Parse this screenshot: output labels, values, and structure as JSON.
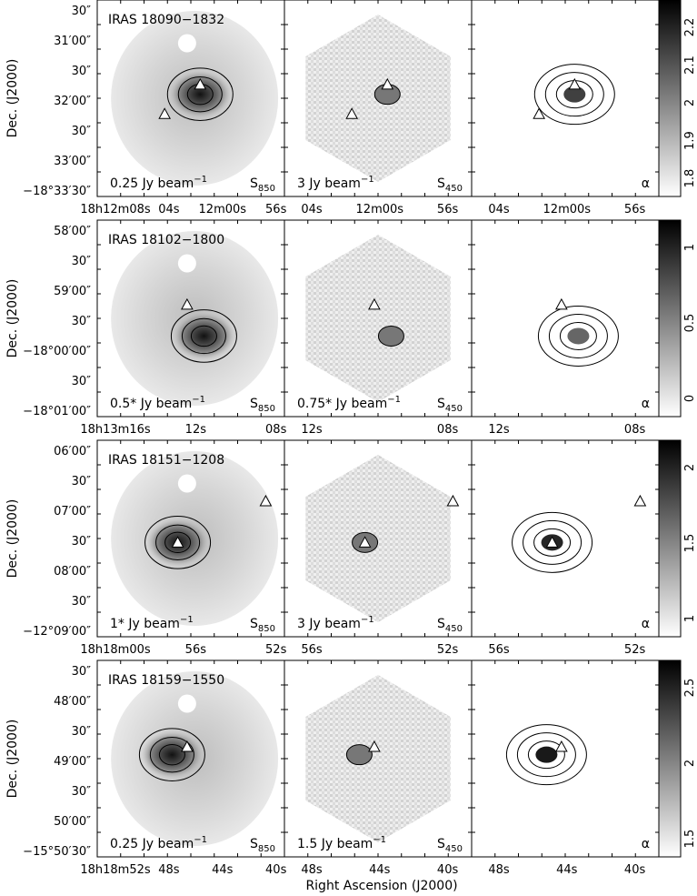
{
  "figure": {
    "xaxis_title": "Right Ascension (J2000)",
    "yaxis_title": "Dec. (J2000)"
  },
  "rows": [
    {
      "source": "IRAS 18090−1832",
      "labels": [
        "0.25 Jy beam",
        "3 Jy beam",
        ""
      ],
      "label_sup": [
        "−1",
        "−1",
        ""
      ],
      "maps": [
        "S850",
        "S450",
        "α"
      ],
      "yticks": [
        "30″",
        "31′00″",
        "30″",
        "32′00″",
        "30″",
        "33′00″",
        "−18°33′30″"
      ],
      "xticks_first": [
        "18h12m08s",
        "04s",
        "12m00s",
        "56s"
      ],
      "xticks_other": [
        "04s",
        "12m00s",
        "56s"
      ],
      "colorbar": [
        "2.2",
        "2.1",
        "2",
        "1.9",
        "1.8"
      ],
      "peak": [
        0.55,
        0.48
      ],
      "tri_white": [
        0.55,
        0.43
      ],
      "tri_open": [
        0.36,
        0.58
      ],
      "alpha_peak": 0.75
    },
    {
      "source": "IRAS 18102−1800",
      "labels": [
        "0.5* Jy beam",
        "0.75* Jy beam",
        ""
      ],
      "label_sup": [
        "−1",
        "−1",
        ""
      ],
      "maps": [
        "S850",
        "S450",
        "α"
      ],
      "yticks": [
        "58′00″",
        "30″",
        "59′00″",
        "30″",
        "−18°00′00″",
        "30″",
        "−18°01′00″"
      ],
      "xticks_first": [
        "18h13m16s",
        "12s",
        "08s"
      ],
      "xticks_other": [
        "12s",
        "08s"
      ],
      "colorbar": [
        "1",
        "0.5",
        "0"
      ],
      "peak": [
        0.57,
        0.59
      ],
      "tri_white": [],
      "tri_open": [
        0.48,
        0.43
      ],
      "alpha_peak": 0.6
    },
    {
      "source": "IRAS 18151−1208",
      "labels": [
        "1* Jy beam",
        "3 Jy beam",
        ""
      ],
      "label_sup": [
        "−1",
        "−1",
        ""
      ],
      "maps": [
        "S850",
        "S450",
        "α"
      ],
      "yticks": [
        "06′00″",
        "30″",
        "07′00″",
        "30″",
        "08′00″",
        "30″",
        "−12°09′00″"
      ],
      "xticks_first": [
        "18h18m00s",
        "56s",
        "52s"
      ],
      "xticks_other": [
        "56s",
        "52s"
      ],
      "colorbar": [
        "2",
        "1.5",
        "1"
      ],
      "peak": [
        0.43,
        0.52
      ],
      "tri_white": [
        0.43,
        0.52
      ],
      "tri_open": [
        0.9,
        0.31
      ],
      "alpha_peak": 0.85
    },
    {
      "source": "IRAS 18159−1550",
      "labels": [
        "0.25 Jy beam",
        "1.5 Jy beam",
        ""
      ],
      "label_sup": [
        "−1",
        "−1",
        ""
      ],
      "maps": [
        "S850",
        "S450",
        "α"
      ],
      "yticks": [
        "30″",
        "48′00″",
        "30″",
        "49′00″",
        "30″",
        "50′00″",
        "−15°50′30″"
      ],
      "xticks_first": [
        "18h18m52s",
        "48s",
        "44s",
        "40s"
      ],
      "xticks_other": [
        "48s",
        "44s",
        "40s"
      ],
      "colorbar": [
        "2.5",
        "2",
        "1.5"
      ],
      "peak": [
        0.4,
        0.48
      ],
      "tri_white": [
        0.48,
        0.44
      ],
      "tri_open": [],
      "alpha_peak": 0.9
    }
  ]
}
